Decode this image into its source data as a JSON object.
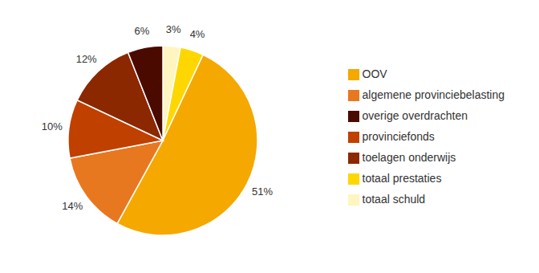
{
  "chart_data": {
    "type": "pie",
    "categories": [
      "totaal schuld",
      "totaal prestaties",
      "OOV",
      "algemene provinciebelasting",
      "provinciefonds",
      "toelagen onderwijs",
      "overige overdrachten"
    ],
    "values": [
      3,
      4,
      51,
      14,
      10,
      12,
      6
    ],
    "value_labels": [
      "3%",
      "4%",
      "51%",
      "14%",
      "10%",
      "12%",
      "6%"
    ],
    "colors": [
      "#FFF5C0",
      "#FFD700",
      "#F5A800",
      "#E87820",
      "#C04000",
      "#8B2800",
      "#4A0A00"
    ],
    "data_labels": true,
    "legend": "right"
  }
}
